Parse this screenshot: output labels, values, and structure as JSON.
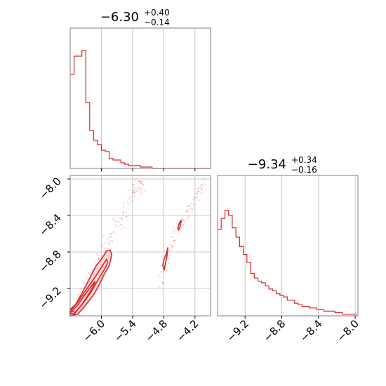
{
  "colors": {
    "main": "#d62728",
    "fill": "#f4c7c7",
    "grid": "#c8c8c8",
    "frame": "#808080"
  },
  "chart_data": [
    {
      "type": "histogram",
      "param": "x",
      "title": {
        "value": "−6.30",
        "plus": "+0.40",
        "minus": "−0.14"
      },
      "xlim": [
        -6.6,
        -3.9
      ],
      "gridlines_x": [
        -6.0,
        -5.4,
        -4.8,
        -4.2
      ],
      "bins": {
        "start": -6.6,
        "width": 0.075,
        "counts": [
          0.67,
          0.8,
          0.8,
          0.84,
          0.47,
          0.27,
          0.2,
          0.17,
          0.13,
          0.12,
          0.07,
          0.06,
          0.06,
          0.04,
          0.03,
          0.02,
          0.02,
          0.02,
          0.01,
          0.01,
          0.01,
          0.0,
          0.0,
          0.0,
          0.0,
          0.0,
          0.0,
          0.0,
          0.0,
          0.0,
          0.0,
          0.0,
          0.0,
          0.0,
          0.0,
          0.0,
          0.0
        ]
      }
    },
    {
      "type": "scatter-contour",
      "xlim": [
        -6.6,
        -3.9
      ],
      "ylim": [
        -8.0,
        -9.5
      ],
      "xticks": [
        "−6.0",
        "−5.4",
        "−4.8",
        "−4.2"
      ],
      "xtick_values": [
        -6.0,
        -5.4,
        -4.8,
        -4.2
      ],
      "yticks": [
        "−8.0",
        "−8.4",
        "−8.8",
        "−9.2"
      ],
      "ytick_values": [
        -8.0,
        -8.4,
        -8.8,
        -9.2
      ],
      "cluster_a_band": [
        [
          -6.6,
          -9.5
        ],
        [
          -6.3,
          -9.2
        ],
        [
          -6.0,
          -8.85
        ],
        [
          -5.7,
          -8.5
        ],
        [
          -5.4,
          -8.2
        ],
        [
          -5.2,
          -8.0
        ]
      ],
      "cluster_b_band": [
        [
          -4.9,
          -9.2
        ],
        [
          -4.7,
          -8.8
        ],
        [
          -4.5,
          -8.5
        ],
        [
          -4.2,
          -8.2
        ],
        [
          -4.0,
          -8.0
        ]
      ],
      "contours": [
        [
          [
            -6.6,
            -9.43
          ],
          [
            -6.5,
            -9.38
          ],
          [
            -6.4,
            -9.28
          ],
          [
            -6.3,
            -9.17
          ],
          [
            -6.2,
            -9.06
          ],
          [
            -6.1,
            -8.95
          ],
          [
            -6.0,
            -8.88
          ],
          [
            -5.9,
            -8.79
          ],
          [
            -5.83,
            -8.78
          ],
          [
            -5.8,
            -8.83
          ],
          [
            -5.85,
            -8.95
          ],
          [
            -5.95,
            -9.05
          ],
          [
            -6.05,
            -9.17
          ],
          [
            -6.15,
            -9.27
          ],
          [
            -6.3,
            -9.38
          ],
          [
            -6.45,
            -9.48
          ],
          [
            -6.6,
            -9.5
          ]
        ],
        [
          [
            -6.6,
            -9.45
          ],
          [
            -6.45,
            -9.35
          ],
          [
            -6.3,
            -9.22
          ],
          [
            -6.15,
            -9.1
          ],
          [
            -6.0,
            -8.97
          ],
          [
            -5.9,
            -8.88
          ],
          [
            -5.88,
            -8.92
          ],
          [
            -5.95,
            -9.0
          ],
          [
            -6.08,
            -9.12
          ],
          [
            -6.2,
            -9.24
          ],
          [
            -6.35,
            -9.36
          ],
          [
            -6.5,
            -9.46
          ]
        ],
        [
          [
            -6.6,
            -9.47
          ],
          [
            -6.45,
            -9.38
          ],
          [
            -6.32,
            -9.27
          ],
          [
            -6.2,
            -9.18
          ],
          [
            -6.12,
            -9.12
          ],
          [
            -6.15,
            -9.17
          ],
          [
            -6.25,
            -9.27
          ],
          [
            -6.38,
            -9.38
          ],
          [
            -6.52,
            -9.48
          ]
        ],
        [
          [
            -4.8,
            -8.89
          ],
          [
            -4.75,
            -8.82
          ],
          [
            -4.72,
            -8.75
          ],
          [
            -4.74,
            -8.85
          ],
          [
            -4.77,
            -8.93
          ],
          [
            -4.79,
            -9.0
          ],
          [
            -4.82,
            -8.95
          ],
          [
            -4.8,
            -8.89
          ]
        ],
        [
          [
            -4.53,
            -8.54
          ],
          [
            -4.5,
            -8.48
          ],
          [
            -4.46,
            -8.45
          ],
          [
            -4.48,
            -8.51
          ],
          [
            -4.51,
            -8.56
          ],
          [
            -4.53,
            -8.54
          ]
        ]
      ]
    },
    {
      "type": "histogram",
      "param": "y",
      "title": {
        "value": "−9.34",
        "plus": "+0.34",
        "minus": "−0.16"
      },
      "xlim": [
        -9.5,
        -7.97
      ],
      "xticks": [
        "−9.2",
        "−8.8",
        "−8.4",
        "−8.0"
      ],
      "xtick_values": [
        -9.2,
        -8.8,
        -8.4,
        -8.0
      ],
      "bins": {
        "start": -9.5,
        "width": 0.04,
        "counts": [
          0.55,
          0.62,
          0.67,
          0.64,
          0.56,
          0.5,
          0.44,
          0.39,
          0.34,
          0.27,
          0.24,
          0.22,
          0.21,
          0.19,
          0.17,
          0.16,
          0.14,
          0.13,
          0.12,
          0.1,
          0.1,
          0.08,
          0.07,
          0.06,
          0.06,
          0.05,
          0.05,
          0.04,
          0.04,
          0.03,
          0.03,
          0.03,
          0.02,
          0.02,
          0.01,
          0.01,
          0.01,
          0.01
        ]
      }
    }
  ]
}
